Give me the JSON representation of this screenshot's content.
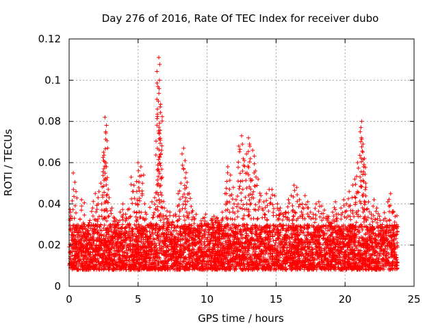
{
  "chart_data": {
    "type": "scatter",
    "title": "Day 276 of 2016, Rate Of TEC Index for receiver dubo",
    "xlabel": "GPS time / hours",
    "ylabel": "ROTI / TECUs",
    "xlim": [
      0,
      25
    ],
    "ylim": [
      0,
      0.12
    ],
    "xticks": [
      0,
      5,
      10,
      15,
      20,
      25
    ],
    "xtick_labels": [
      "0",
      "5",
      "10",
      "15",
      "20",
      "25"
    ],
    "yticks": [
      0,
      0.02,
      0.04,
      0.06,
      0.08,
      0.1,
      0.12
    ],
    "ytick_labels": [
      "0",
      "0.02",
      "0.04",
      "0.06",
      "0.08",
      "0.1",
      "0.12"
    ],
    "grid": true,
    "marker": "+",
    "marker_color": "#ff0000",
    "series": [
      {
        "name": "ROTI",
        "x": [
          0.1,
          0.3,
          0.5,
          0.7,
          0.9,
          1.1,
          1.3,
          1.5,
          1.7,
          1.9,
          2.1,
          2.3,
          2.5,
          2.6,
          2.65,
          2.7,
          2.9,
          3.1,
          3.3,
          3.5,
          3.7,
          3.9,
          4.1,
          4.3,
          4.5,
          4.7,
          4.9,
          5.0,
          5.2,
          5.4,
          5.6,
          5.8,
          6.0,
          6.2,
          6.4,
          6.5,
          6.55,
          6.6,
          6.7,
          6.9,
          7.1,
          7.3,
          7.5,
          7.7,
          7.9,
          8.1,
          8.3,
          8.4,
          8.5,
          8.7,
          8.9,
          9.1,
          9.3,
          9.5,
          9.7,
          9.9,
          10.1,
          10.3,
          10.5,
          10.7,
          10.9,
          11.1,
          11.3,
          11.5,
          11.7,
          11.9,
          12.1,
          12.3,
          12.5,
          12.7,
          12.9,
          13.0,
          13.1,
          13.3,
          13.5,
          13.7,
          13.9,
          14.1,
          14.3,
          14.5,
          14.7,
          14.9,
          15.1,
          15.3,
          15.5,
          15.7,
          15.9,
          16.1,
          16.3,
          16.5,
          16.7,
          16.9,
          17.1,
          17.3,
          17.5,
          17.7,
          17.9,
          18.1,
          18.3,
          18.5,
          18.7,
          18.9,
          19.1,
          19.3,
          19.5,
          19.7,
          19.9,
          20.1,
          20.3,
          20.5,
          20.7,
          20.9,
          21.1,
          21.2,
          21.3,
          21.4,
          21.5,
          21.7,
          21.9,
          22.1,
          22.3,
          22.5,
          22.7,
          22.9,
          23.1,
          23.3,
          23.5,
          23.7
        ],
        "y": [
          0.036,
          0.055,
          0.046,
          0.028,
          0.042,
          0.03,
          0.024,
          0.032,
          0.038,
          0.045,
          0.043,
          0.05,
          0.065,
          0.082,
          0.075,
          0.058,
          0.043,
          0.038,
          0.033,
          0.03,
          0.036,
          0.04,
          0.035,
          0.033,
          0.053,
          0.049,
          0.046,
          0.06,
          0.058,
          0.054,
          0.035,
          0.03,
          0.041,
          0.043,
          0.086,
          0.111,
          0.1,
          0.087,
          0.066,
          0.038,
          0.033,
          0.036,
          0.031,
          0.035,
          0.045,
          0.05,
          0.067,
          0.061,
          0.048,
          0.045,
          0.036,
          0.033,
          0.028,
          0.026,
          0.033,
          0.035,
          0.03,
          0.032,
          0.034,
          0.033,
          0.031,
          0.036,
          0.045,
          0.058,
          0.054,
          0.048,
          0.042,
          0.068,
          0.073,
          0.061,
          0.055,
          0.072,
          0.068,
          0.066,
          0.056,
          0.052,
          0.044,
          0.041,
          0.045,
          0.047,
          0.047,
          0.044,
          0.04,
          0.038,
          0.035,
          0.036,
          0.042,
          0.044,
          0.049,
          0.048,
          0.042,
          0.04,
          0.044,
          0.041,
          0.036,
          0.035,
          0.04,
          0.041,
          0.039,
          0.037,
          0.034,
          0.031,
          0.036,
          0.041,
          0.035,
          0.038,
          0.042,
          0.04,
          0.046,
          0.043,
          0.052,
          0.06,
          0.075,
          0.08,
          0.069,
          0.062,
          0.05,
          0.041,
          0.035,
          0.042,
          0.038,
          0.034,
          0.03,
          0.033,
          0.041,
          0.045,
          0.036,
          0.025
        ]
      }
    ],
    "background_band": {
      "description": "dense cloud of + markers spanning the whole day",
      "x_range": [
        0.0,
        23.8
      ],
      "y_low_typical": 0.008,
      "y_high_typical": 0.03,
      "count": 7000
    }
  }
}
